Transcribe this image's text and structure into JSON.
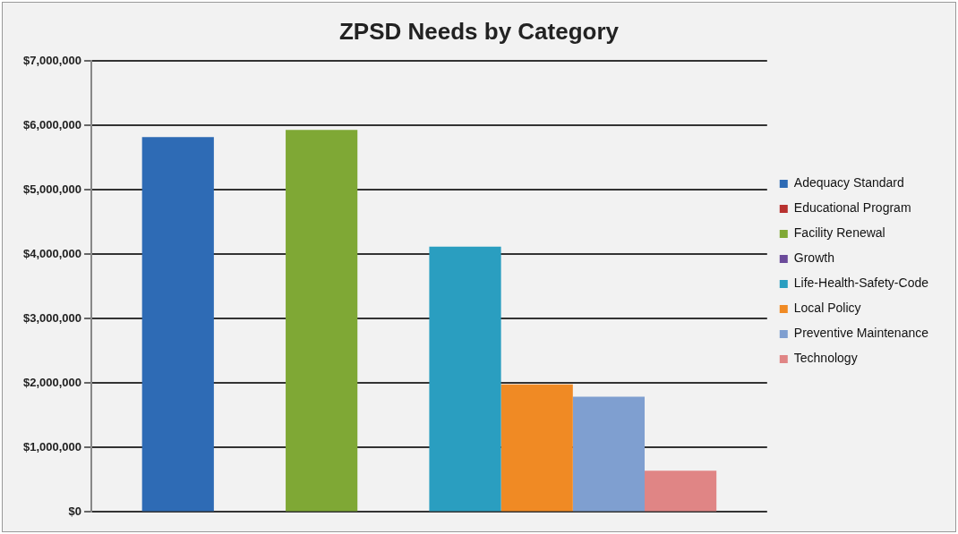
{
  "chart_data": {
    "type": "bar",
    "title": "ZPSD Needs by Category",
    "categories": [
      null
    ],
    "series": [
      {
        "name": "Adequacy Standard",
        "color": "#2e6bb5",
        "values": [
          5820000
        ]
      },
      {
        "name": "Educational Program",
        "color": "#b8312f",
        "values": [
          0
        ]
      },
      {
        "name": "Facility Renewal",
        "color": "#7fa835",
        "values": [
          5930000
        ]
      },
      {
        "name": "Growth",
        "color": "#6b4a9a",
        "values": [
          0
        ]
      },
      {
        "name": "Life-Health-Safety-Code",
        "color": "#2a9ec0",
        "values": [
          4120000
        ]
      },
      {
        "name": "Local Policy",
        "color": "#f08a24",
        "values": [
          1980000
        ]
      },
      {
        "name": "Preventive Maintenance",
        "color": "#7f9fd0",
        "values": [
          1790000
        ]
      },
      {
        "name": "Technology",
        "color": "#e08585",
        "values": [
          640000
        ]
      }
    ],
    "ylim": [
      0,
      7000000
    ],
    "yticks": [
      {
        "value": 0,
        "label": "$0"
      },
      {
        "value": 1000000,
        "label": "$1,000,000"
      },
      {
        "value": 2000000,
        "label": "$2,000,000"
      },
      {
        "value": 3000000,
        "label": "$3,000,000"
      },
      {
        "value": 4000000,
        "label": "$4,000,000"
      },
      {
        "value": 5000000,
        "label": "$5,000,000"
      },
      {
        "value": 6000000,
        "label": "$6,000,000"
      },
      {
        "value": 7000000,
        "label": "$7,000,000"
      }
    ],
    "grid": "y",
    "legend": "right"
  }
}
